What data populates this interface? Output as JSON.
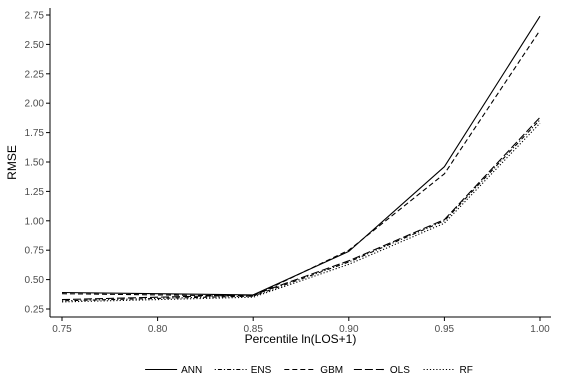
{
  "chart_data": {
    "type": "line",
    "xlabel": "Percentile ln(LOS+1)",
    "ylabel": "RMSE",
    "x": [
      0.75,
      0.8,
      0.85,
      0.9,
      0.95,
      1.0
    ],
    "x_ticks": [
      "0.75",
      "0.80",
      "0.85",
      "0.90",
      "0.95",
      "1.00"
    ],
    "y_ticks": [
      "0.25",
      "0.50",
      "0.75",
      "1.00",
      "1.25",
      "1.50",
      "1.75",
      "2.00",
      "2.25",
      "2.50",
      "2.75"
    ],
    "xlim": [
      0.75,
      1.0
    ],
    "ylim": [
      0.25,
      2.75
    ],
    "grid": false,
    "legend_position": "bottom",
    "series": [
      {
        "name": "ANN",
        "dash": "solid",
        "values": [
          0.39,
          0.38,
          0.37,
          0.74,
          1.46,
          2.74
        ]
      },
      {
        "name": "ENS",
        "dash": "dotted-dash",
        "values": [
          0.32,
          0.34,
          0.36,
          0.65,
          1.0,
          1.86
        ]
      },
      {
        "name": "GBM",
        "dash": "dashed",
        "values": [
          0.38,
          0.37,
          0.36,
          0.75,
          1.4,
          2.62
        ]
      },
      {
        "name": "OLS",
        "dash": "long-dash",
        "values": [
          0.33,
          0.35,
          0.37,
          0.66,
          1.01,
          1.88
        ]
      },
      {
        "name": "RF",
        "dash": "dotted",
        "values": [
          0.31,
          0.33,
          0.35,
          0.63,
          0.98,
          1.83
        ]
      }
    ],
    "colors": {
      "line": "#000000",
      "axis": "#000000",
      "tick_label": "#4d4d4d"
    }
  }
}
